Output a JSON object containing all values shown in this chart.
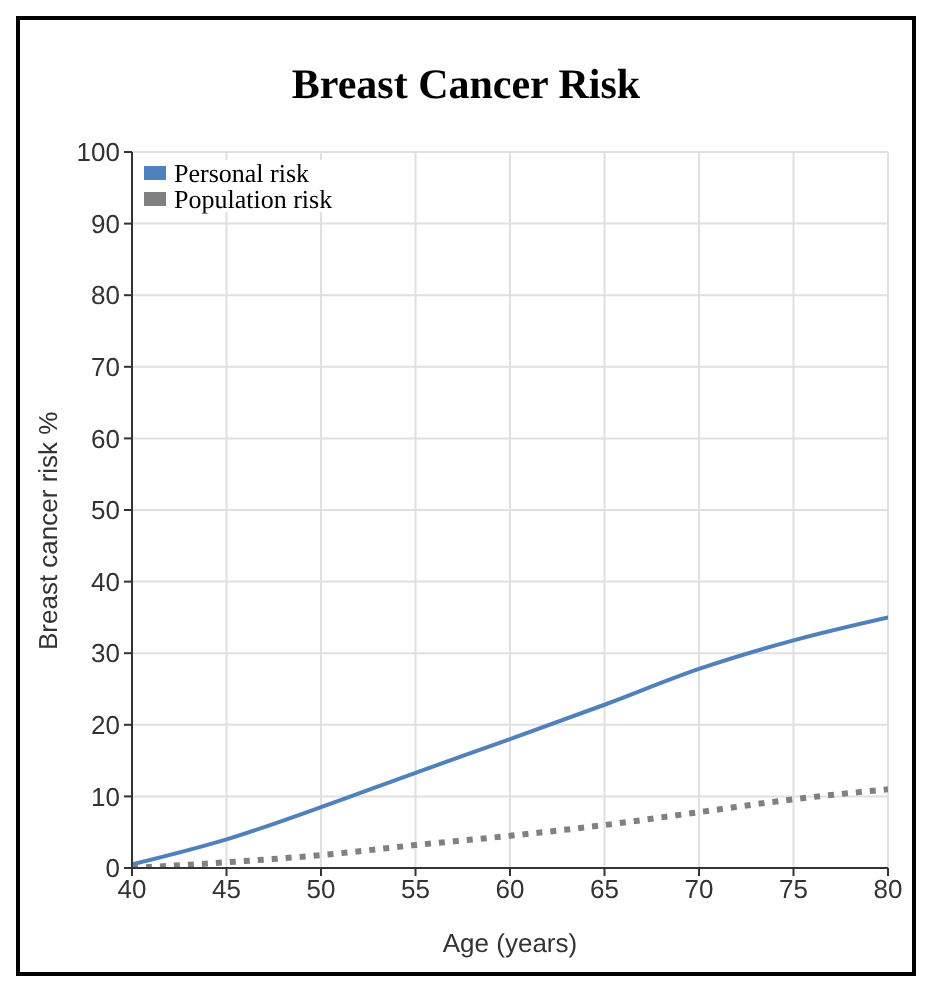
{
  "chart_data": {
    "type": "line",
    "title": "Breast Cancer Risk",
    "xlabel": "Age (years)",
    "ylabel": "Breast cancer risk %",
    "x": [
      40,
      45,
      50,
      55,
      60,
      65,
      70,
      75,
      80
    ],
    "series": [
      {
        "name": "Personal risk",
        "color": "#4f81bd",
        "values": [
          0.5,
          4,
          8.5,
          13.3,
          18,
          22.8,
          27.8,
          31.8,
          35
        ],
        "line_style": "solid"
      },
      {
        "name": "Population risk",
        "color": "#808080",
        "values": [
          0,
          0.8,
          1.8,
          3.2,
          4.5,
          6,
          7.8,
          9.6,
          11
        ],
        "line_style": "dotted"
      }
    ],
    "xlim": [
      40,
      80
    ],
    "xticks": [
      40,
      45,
      50,
      55,
      60,
      65,
      70,
      75,
      80
    ],
    "ylim": [
      0,
      100
    ],
    "yticks": [
      0,
      10,
      20,
      30,
      40,
      50,
      60,
      70,
      80,
      90,
      100
    ],
    "grid": true,
    "legend": "top left",
    "marker": "none"
  }
}
